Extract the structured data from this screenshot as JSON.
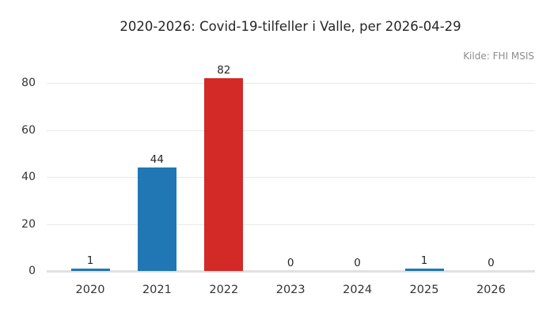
{
  "chart_data": {
    "type": "bar",
    "title": "2020-2026: Covid-19-tilfeller i Valle, per 2026-04-29",
    "source": "Kilde: FHI MSIS",
    "categories": [
      "2020",
      "2021",
      "2022",
      "2023",
      "2024",
      "2025",
      "2026"
    ],
    "values": [
      1,
      44,
      82,
      0,
      0,
      1,
      0
    ],
    "value_labels": [
      "1",
      "44",
      "82",
      "0",
      "0",
      "1",
      "0"
    ],
    "bar_colors": [
      "#2077b4",
      "#2077b4",
      "#d32927",
      "#2077b4",
      "#2077b4",
      "#2077b4",
      "#2077b4"
    ],
    "yticks": [
      0,
      20,
      40,
      60,
      80
    ],
    "ylim": [
      0,
      87
    ],
    "xlabel": "",
    "ylabel": "",
    "grid": true,
    "legend_position": "none",
    "colors": {
      "bar_blue": "#2077b4",
      "bar_red": "#d32927",
      "title_text": "#262626",
      "tick_text": "#343434",
      "source_text": "#8c8c8c",
      "gridline": "#e9e9e9",
      "axis_line": "#e1e1e1",
      "background": "#ffffff"
    }
  }
}
